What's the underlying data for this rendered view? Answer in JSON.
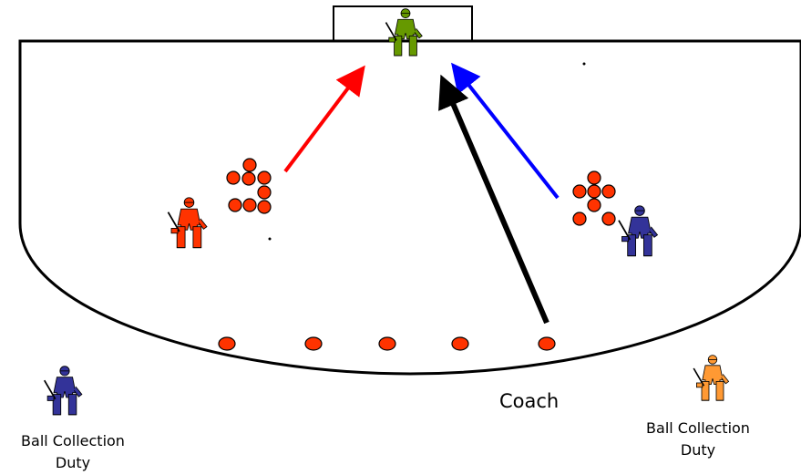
{
  "labels": {
    "coach": "Coach",
    "duty_left": "Ball Collection\nDuty",
    "duty_right": "Ball Collection\nDuty"
  },
  "colors": {
    "line": "#000000",
    "ball": "#ff3300",
    "goalkeeper": "#669900",
    "player_red": "#ff3300",
    "player_blue": "#333399",
    "player_orange": "#ff9933",
    "arrow_red": "#ff0000",
    "arrow_blue": "#0000ff",
    "arrow_black": "#000000"
  },
  "figures": [
    {
      "id": "goalkeeper",
      "icon": "goalkeeper-icon"
    },
    {
      "id": "red-shooter",
      "icon": "hockey-player-icon"
    },
    {
      "id": "blue-shooter",
      "icon": "hockey-player-icon"
    },
    {
      "id": "collector-left",
      "icon": "hockey-player-icon"
    },
    {
      "id": "collector-right",
      "icon": "hockey-player-icon"
    }
  ]
}
